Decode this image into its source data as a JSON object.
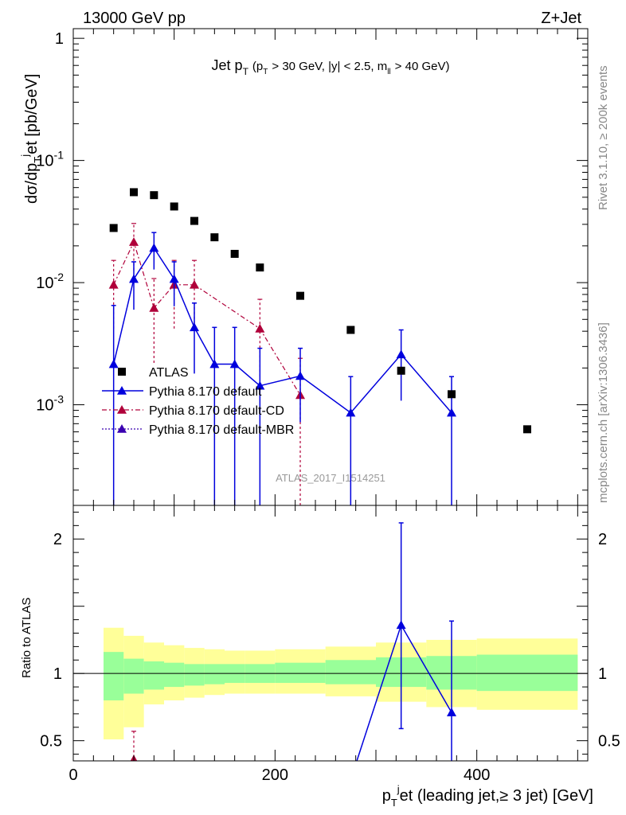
{
  "header": {
    "left": "13000 GeV pp",
    "right": "Z+Jet",
    "side_top": "Rivet 3.1.10, ≥ 200k events",
    "side_bottom": "mcplots.cern.ch [arXiv:1306.3436]",
    "watermark": "ATLAS_2017_I1514251"
  },
  "colors": {
    "data": "#000000",
    "default": "#0000dd",
    "cd": "#b0003a",
    "mbr": "#3a00b0",
    "band_inner": "#99ff99",
    "band_outer": "#ffff99"
  },
  "chart_data": [
    {
      "type": "scatter",
      "panel": "main",
      "title": "Jet p_T (p_T > 30 GeV, |y| < 2.5, m_ll > 40 GeV)",
      "ylabel": "dσ/dp_T^j et [pb/GeV]",
      "yscale": "log",
      "ylim": [
        0.00015,
        1.2
      ],
      "xlim": [
        0,
        510
      ],
      "y_ticks": [
        {
          "value": 0.001,
          "label": "10^-3"
        },
        {
          "value": 0.01,
          "label": "10^-2"
        },
        {
          "value": 0.1,
          "label": "10^-1"
        },
        {
          "value": 1,
          "label": "1"
        }
      ],
      "series": [
        {
          "name": "ATLAS",
          "marker": "square",
          "points": [
            {
              "x": 40,
              "y": 0.028
            },
            {
              "x": 60,
              "y": 0.055
            },
            {
              "x": 80,
              "y": 0.052
            },
            {
              "x": 100,
              "y": 0.042
            },
            {
              "x": 120,
              "y": 0.032
            },
            {
              "x": 140,
              "y": 0.0235
            },
            {
              "x": 160,
              "y": 0.0172
            },
            {
              "x": 185,
              "y": 0.0133
            },
            {
              "x": 225,
              "y": 0.0078
            },
            {
              "x": 275,
              "y": 0.0041
            },
            {
              "x": 325,
              "y": 0.0019
            },
            {
              "x": 375,
              "y": 0.00122
            },
            {
              "x": 450,
              "y": 0.00063
            }
          ]
        },
        {
          "name": "Pythia 8.170 default",
          "marker": "triangle",
          "line": "solid",
          "points": [
            {
              "x": 40,
              "y": 0.00215,
              "lo": 0.00015,
              "hi": 0.0065
            },
            {
              "x": 60,
              "y": 0.0107,
              "lo": 0.006,
              "hi": 0.0148
            },
            {
              "x": 80,
              "y": 0.0192,
              "lo": 0.0128,
              "hi": 0.0257
            },
            {
              "x": 100,
              "y": 0.0107,
              "lo": 0.0064,
              "hi": 0.0148
            },
            {
              "x": 120,
              "y": 0.0043,
              "lo": 0.0018,
              "hi": 0.0068
            },
            {
              "x": 140,
              "y": 0.00215,
              "lo": 0.00015,
              "hi": 0.0043
            },
            {
              "x": 160,
              "y": 0.00215,
              "lo": 0.00015,
              "hi": 0.0043
            },
            {
              "x": 185,
              "y": 0.00143,
              "lo": 0.00015,
              "hi": 0.0029
            },
            {
              "x": 225,
              "y": 0.00172,
              "lo": 0.00072,
              "hi": 0.0029
            },
            {
              "x": 275,
              "y": 0.00086,
              "lo": 0.00015,
              "hi": 0.0017
            },
            {
              "x": 325,
              "y": 0.00258,
              "lo": 0.00108,
              "hi": 0.0041
            },
            {
              "x": 375,
              "y": 0.00086,
              "lo": 0.00015,
              "hi": 0.0017
            }
          ]
        },
        {
          "name": "Pythia 8.170 default-CD",
          "marker": "triangle",
          "line": "dashdot",
          "points": [
            {
              "x": 40,
              "y": 0.0096,
              "lo": 0.0042,
              "hi": 0.0152
            },
            {
              "x": 60,
              "y": 0.0215,
              "lo": 0.0126,
              "hi": 0.0305
            },
            {
              "x": 80,
              "y": 0.0062,
              "lo": 0.0022,
              "hi": 0.0108
            },
            {
              "x": 100,
              "y": 0.0096,
              "lo": 0.0042,
              "hi": 0.0152
            },
            {
              "x": 120,
              "y": 0.0096,
              "lo": 0.0042,
              "hi": 0.0152
            },
            {
              "x": 185,
              "y": 0.0042,
              "lo": 0.0017,
              "hi": 0.0073
            },
            {
              "x": 225,
              "y": 0.0012,
              "lo": 0.00015,
              "hi": 0.0024
            }
          ]
        },
        {
          "name": "Pythia 8.170 default-MBR",
          "marker": "triangle",
          "line": "dotted",
          "points": []
        }
      ]
    },
    {
      "type": "line",
      "panel": "ratio",
      "ylabel": "Ratio to ATLAS",
      "xlabel": "p_T^j et (leading jet,≥ 3 jet) [GeV]",
      "ylim": [
        0.35,
        2.25
      ],
      "xlim": [
        0,
        510
      ],
      "x_ticks": [
        0,
        200,
        400
      ],
      "y_ticks": [
        0.5,
        1,
        2
      ],
      "bands": {
        "edges": [
          30,
          50,
          70,
          90,
          110,
          130,
          150,
          170,
          200,
          250,
          300,
          350,
          400,
          500
        ],
        "inner_lo": [
          0.8,
          0.85,
          0.88,
          0.9,
          0.91,
          0.92,
          0.93,
          0.93,
          0.93,
          0.92,
          0.9,
          0.88,
          0.87
        ],
        "inner_hi": [
          1.16,
          1.11,
          1.09,
          1.08,
          1.07,
          1.07,
          1.07,
          1.07,
          1.08,
          1.1,
          1.12,
          1.13,
          1.14
        ],
        "outer_lo": [
          0.51,
          0.6,
          0.77,
          0.8,
          0.82,
          0.84,
          0.85,
          0.85,
          0.85,
          0.83,
          0.79,
          0.75,
          0.73
        ],
        "outer_hi": [
          1.34,
          1.28,
          1.23,
          1.21,
          1.19,
          1.18,
          1.17,
          1.17,
          1.18,
          1.2,
          1.23,
          1.25,
          1.26
        ]
      },
      "series": [
        {
          "name": "Pythia 8.170 default",
          "points": [
            {
              "x": 275,
              "y": 0.21
            },
            {
              "x": 325,
              "y": 1.36,
              "lo": 0.59,
              "hi": 2.12
            },
            {
              "x": 375,
              "y": 0.71,
              "lo": 0.12,
              "hi": 1.39
            }
          ]
        },
        {
          "name": "Pythia 8.170 default-CD",
          "points": [
            {
              "x": 60,
              "y": 0.36,
              "lo": 0.2,
              "hi": 0.57
            }
          ]
        }
      ]
    }
  ]
}
